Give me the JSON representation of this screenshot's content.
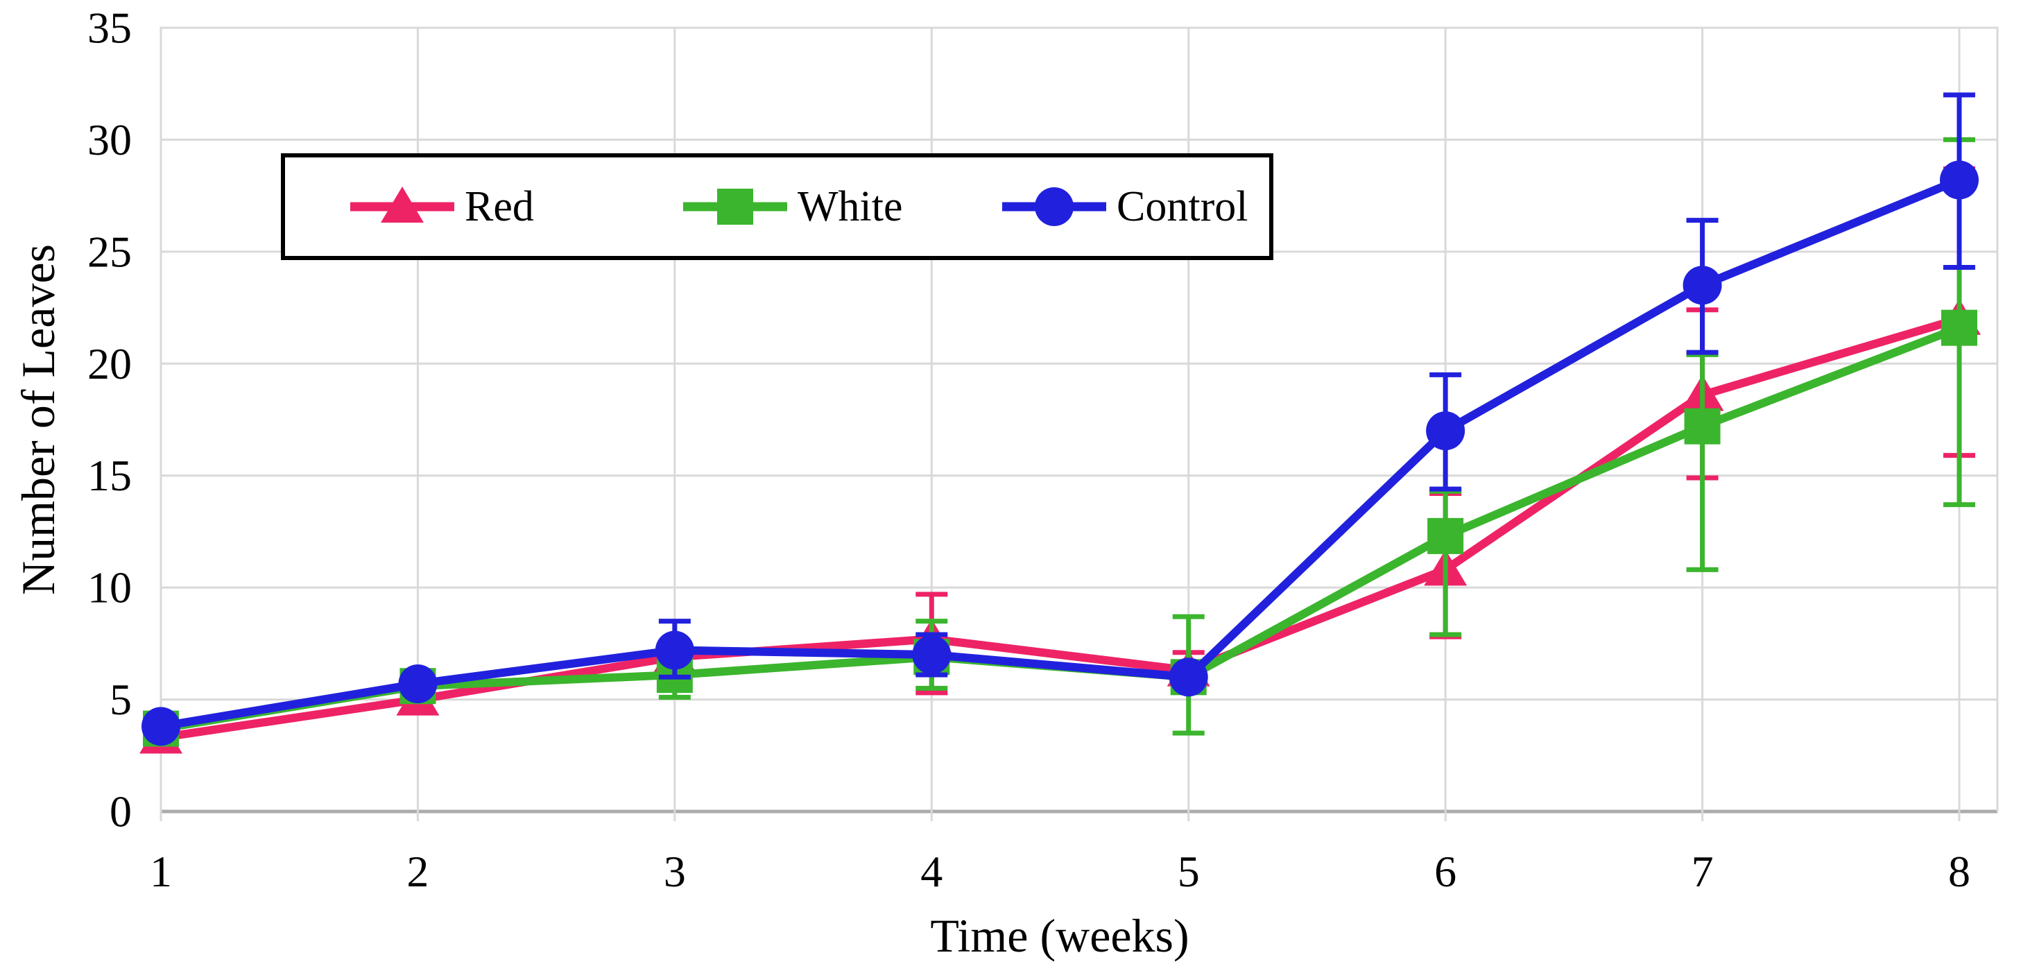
{
  "chart_data": {
    "type": "line",
    "title": "",
    "xlabel": "Time (weeks)",
    "ylabel": "Number of Leaves",
    "x": [
      1,
      2,
      3,
      4,
      5,
      6,
      7,
      8
    ],
    "ylim": [
      0,
      35
    ],
    "ytick_step": 5,
    "grid": true,
    "legend_position": "top-left-inside",
    "legend_labels": [
      "Red",
      "White",
      "Control"
    ],
    "series": [
      {
        "name": "Red",
        "color": "#EE2365",
        "marker": "triangle",
        "values": [
          3.3,
          5.0,
          6.9,
          7.7,
          6.3,
          10.8,
          18.6,
          22.0
        ],
        "err_low": [
          null,
          null,
          null,
          5.3,
          5.5,
          7.8,
          14.9,
          15.9
        ],
        "err_high": [
          null,
          null,
          null,
          9.7,
          7.1,
          14.2,
          22.4,
          28.7
        ]
      },
      {
        "name": "White",
        "color": "#3BB52D",
        "marker": "square",
        "values": [
          3.7,
          5.6,
          6.1,
          6.9,
          6.0,
          12.3,
          17.2,
          21.6
        ],
        "err_low": [
          null,
          null,
          5.1,
          5.5,
          3.5,
          7.9,
          10.8,
          13.7
        ],
        "err_high": [
          null,
          null,
          7.1,
          8.5,
          8.7,
          14.3,
          20.4,
          30.0
        ]
      },
      {
        "name": "Control",
        "color": "#2121DD",
        "marker": "circle",
        "values": [
          3.8,
          5.7,
          7.2,
          7.0,
          6.0,
          17.0,
          23.5,
          28.2
        ],
        "err_low": [
          null,
          null,
          6.0,
          6.1,
          null,
          14.4,
          20.5,
          24.3
        ],
        "err_high": [
          null,
          null,
          8.5,
          7.9,
          null,
          19.5,
          26.4,
          32.0
        ]
      }
    ],
    "colors": {
      "gridline": "#D9D9D9",
      "axis_line": "#ACACAC",
      "legend_border": "#000000",
      "background": "#FFFFFF"
    }
  }
}
